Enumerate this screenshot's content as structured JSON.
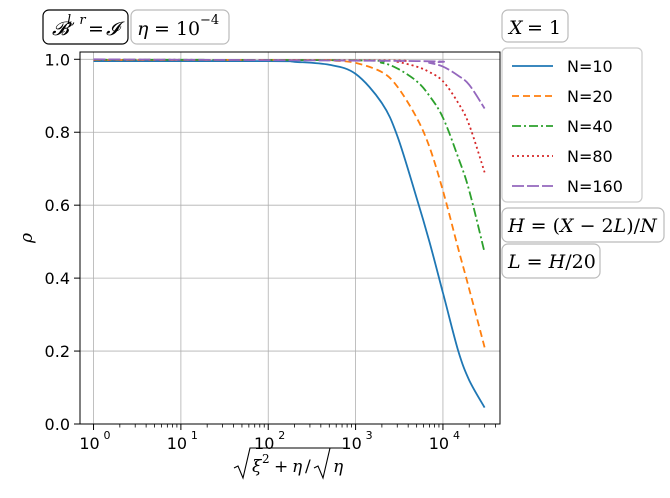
{
  "chart_data": {
    "type": "line",
    "xscale": "log",
    "xlim": [
      0.7,
      45000
    ],
    "ylim": [
      0.0,
      1.02
    ],
    "xlabel": "√(ξ²+η)/√η",
    "ylabel": "ρ",
    "x_ticks": [
      {
        "value": 1,
        "base": "10",
        "exp": "0"
      },
      {
        "value": 10,
        "base": "10",
        "exp": "1"
      },
      {
        "value": 100,
        "base": "10",
        "exp": "2"
      },
      {
        "value": 1000,
        "base": "10",
        "exp": "3"
      },
      {
        "value": 10000,
        "base": "10",
        "exp": "4"
      }
    ],
    "y_ticks": [
      "0.0",
      "0.2",
      "0.4",
      "0.6",
      "0.8",
      "1.0"
    ],
    "grid": true,
    "legend_position": "right",
    "annotations": {
      "boundary": "𝓑^{l,r} = 𝓘",
      "eta": "η = 10^{-4}",
      "X": "X = 1",
      "H": "H = (X − 2L)/N",
      "L": "L = H/20"
    },
    "series": [
      {
        "name": "N=10",
        "color": "#1f77b4",
        "dash": "solid",
        "x": [
          1,
          100,
          200,
          500,
          1000,
          2000,
          3000,
          5000,
          7000,
          10000,
          15000,
          20000,
          30000
        ],
        "y": [
          0.995,
          0.995,
          0.993,
          0.985,
          0.96,
          0.88,
          0.79,
          0.62,
          0.5,
          0.36,
          0.2,
          0.12,
          0.045
        ]
      },
      {
        "name": "N=20",
        "color": "#ff7f0e",
        "dash": "dashed",
        "x": [
          1,
          300,
          600,
          1000,
          2000,
          3000,
          5000,
          7000,
          10000,
          15000,
          20000,
          30000
        ],
        "y": [
          0.998,
          0.998,
          0.996,
          0.99,
          0.965,
          0.925,
          0.84,
          0.76,
          0.64,
          0.48,
          0.37,
          0.21
        ]
      },
      {
        "name": "N=40",
        "color": "#2ca02c",
        "dash": "dashdot",
        "x": [
          1,
          1000,
          2000,
          3000,
          5000,
          7000,
          10000,
          15000,
          20000,
          30000
        ],
        "y": [
          0.999,
          0.997,
          0.99,
          0.975,
          0.94,
          0.9,
          0.84,
          0.73,
          0.64,
          0.47
        ]
      },
      {
        "name": "N=80",
        "color": "#d62728",
        "dash": "dotted",
        "x": [
          1,
          2000,
          3000,
          5000,
          7000,
          10000,
          15000,
          20000,
          30000
        ],
        "y": [
          0.999,
          0.997,
          0.993,
          0.98,
          0.965,
          0.94,
          0.88,
          0.82,
          0.69
        ]
      },
      {
        "name": "N=160",
        "color": "#9467bd",
        "dash": "longdash",
        "x": [
          1,
          5000,
          7000,
          10000,
          15000,
          20000,
          30000
        ],
        "y": [
          1.0,
          0.995,
          0.99,
          0.98,
          0.955,
          0.93,
          0.865
        ]
      }
    ]
  }
}
